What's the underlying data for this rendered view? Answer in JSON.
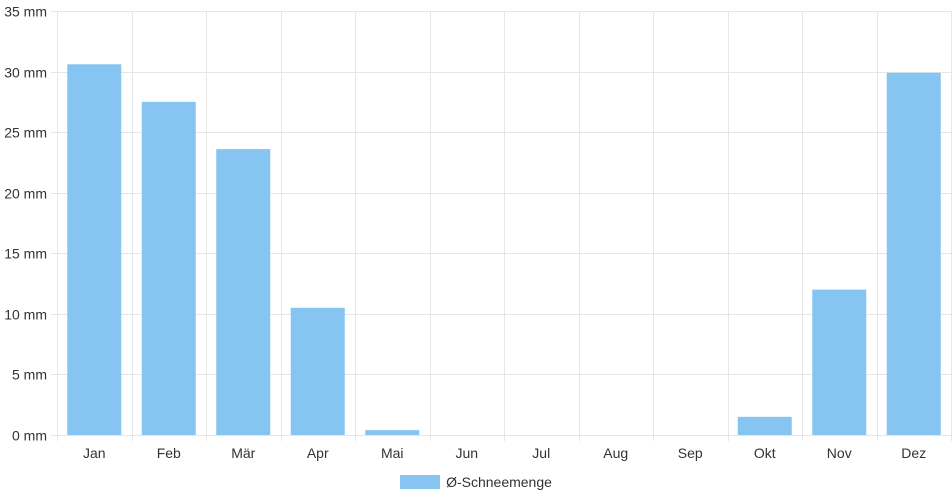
{
  "chart_data": {
    "type": "bar",
    "categories": [
      "Jan",
      "Feb",
      "Mär",
      "Apr",
      "Mai",
      "Jun",
      "Jul",
      "Aug",
      "Sep",
      "Okt",
      "Nov",
      "Dez"
    ],
    "series": [
      {
        "name": "Ø-Schneemenge",
        "values": [
          30.6,
          27.5,
          23.6,
          10.5,
          0.4,
          0,
          0,
          0,
          0,
          1.5,
          12.0,
          29.9
        ]
      }
    ],
    "yticks": [
      "0 mm",
      "5 mm",
      "10 mm",
      "15 mm",
      "20 mm",
      "25 mm",
      "30 mm",
      "35 mm"
    ],
    "ylim": [
      0,
      35
    ],
    "grid": true,
    "legend_position": "bottom",
    "bar_color": "#86c5f1",
    "grid_color": "#e6e6e6"
  }
}
